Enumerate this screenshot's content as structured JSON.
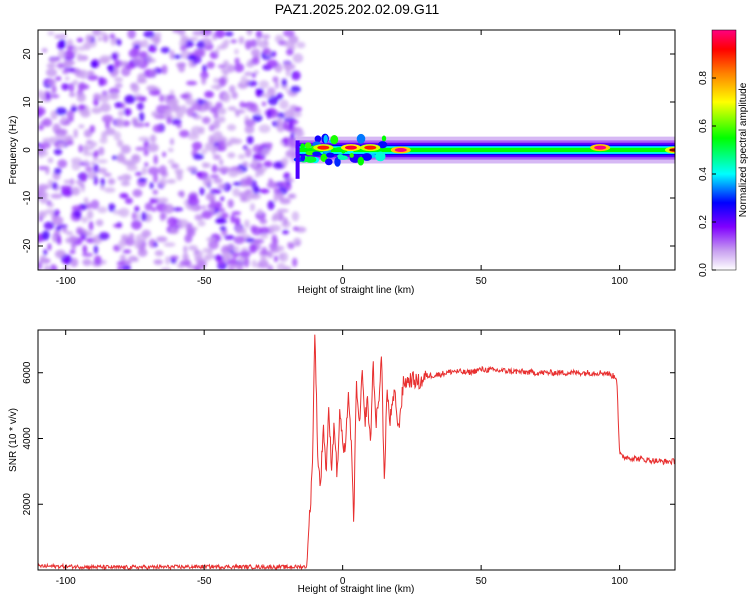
{
  "title": "PAZ1.2025.202.02.09.G11",
  "chart_data": [
    {
      "type": "heatmap",
      "xlabel": "Height of straight line (km)",
      "ylabel": "Frequency (Hz)",
      "xlim": [
        -110,
        120
      ],
      "ylim": [
        -25,
        25
      ],
      "xticks": [
        -100,
        -50,
        0,
        50,
        100
      ],
      "yticks": [
        -20,
        -10,
        0,
        10,
        20
      ],
      "colorbar": {
        "label": "Normalized spectral amplitude",
        "range": [
          0,
          1
        ],
        "ticks": [
          0.0,
          0.2,
          0.4,
          0.6,
          0.8
        ],
        "colors": [
          "#ffffff",
          "#c8a0f0",
          "#8000ff",
          "#0000ff",
          "#00ffff",
          "#00ff00",
          "#ffff00",
          "#ff8000",
          "#ff0000",
          "#ff0080"
        ]
      },
      "regions": [
        {
          "x_range": [
            -110,
            -17
          ],
          "y_range": [
            -25,
            25
          ],
          "description_level": 0.1
        },
        {
          "x_range": [
            -17,
            120
          ],
          "y_range": [
            -1.5,
            1.5
          ],
          "description_level": 0.5
        }
      ],
      "peaks": [
        {
          "x": -7,
          "y": 0.5,
          "value": 0.9
        },
        {
          "x": 3,
          "y": 0.5,
          "value": 0.95
        },
        {
          "x": 10,
          "y": 0.5,
          "value": 0.9
        },
        {
          "x": 21,
          "y": 0,
          "value": 1.0
        },
        {
          "x": 93,
          "y": 0.5,
          "value": 1.0
        },
        {
          "x": 120,
          "y": 0,
          "value": 0.9
        }
      ]
    },
    {
      "type": "line",
      "xlabel": "Height of straight line (km)",
      "ylabel": "SNR (10 * v/v)",
      "xlim": [
        -110,
        120
      ],
      "ylim": [
        0,
        7300
      ],
      "xticks": [
        -100,
        -50,
        0,
        50,
        100
      ],
      "yticks": [
        2000,
        4000,
        6000
      ],
      "grid": false,
      "series": [
        {
          "color": "#e83030",
          "x": [
            -110,
            -80,
            -50,
            -20,
            -13,
            -11,
            -10,
            -9,
            -8,
            -7,
            -6,
            -5,
            -4,
            -3,
            -2,
            -1,
            0,
            1,
            2,
            3,
            4,
            5,
            6,
            7,
            8,
            9,
            10,
            11,
            12,
            13,
            14,
            15,
            16,
            17,
            18,
            19,
            20,
            22,
            25,
            28,
            30,
            35,
            40,
            45,
            50,
            60,
            70,
            80,
            90,
            95,
            99,
            100,
            101,
            105,
            110,
            115,
            120
          ],
          "y": [
            120,
            80,
            100,
            90,
            100,
            3000,
            7300,
            3500,
            2500,
            4500,
            3000,
            4800,
            3200,
            4500,
            2800,
            4900,
            3800,
            3500,
            5500,
            4000,
            1500,
            5800,
            4200,
            6000,
            4500,
            5200,
            3800,
            6300,
            4500,
            5000,
            6700,
            2600,
            5500,
            4500,
            5000,
            5400,
            4200,
            5700,
            5800,
            5700,
            5900,
            5950,
            6050,
            6000,
            6100,
            6050,
            6000,
            6000,
            6000,
            6000,
            5850,
            3500,
            3450,
            3400,
            3350,
            3300,
            3300
          ]
        }
      ]
    }
  ]
}
